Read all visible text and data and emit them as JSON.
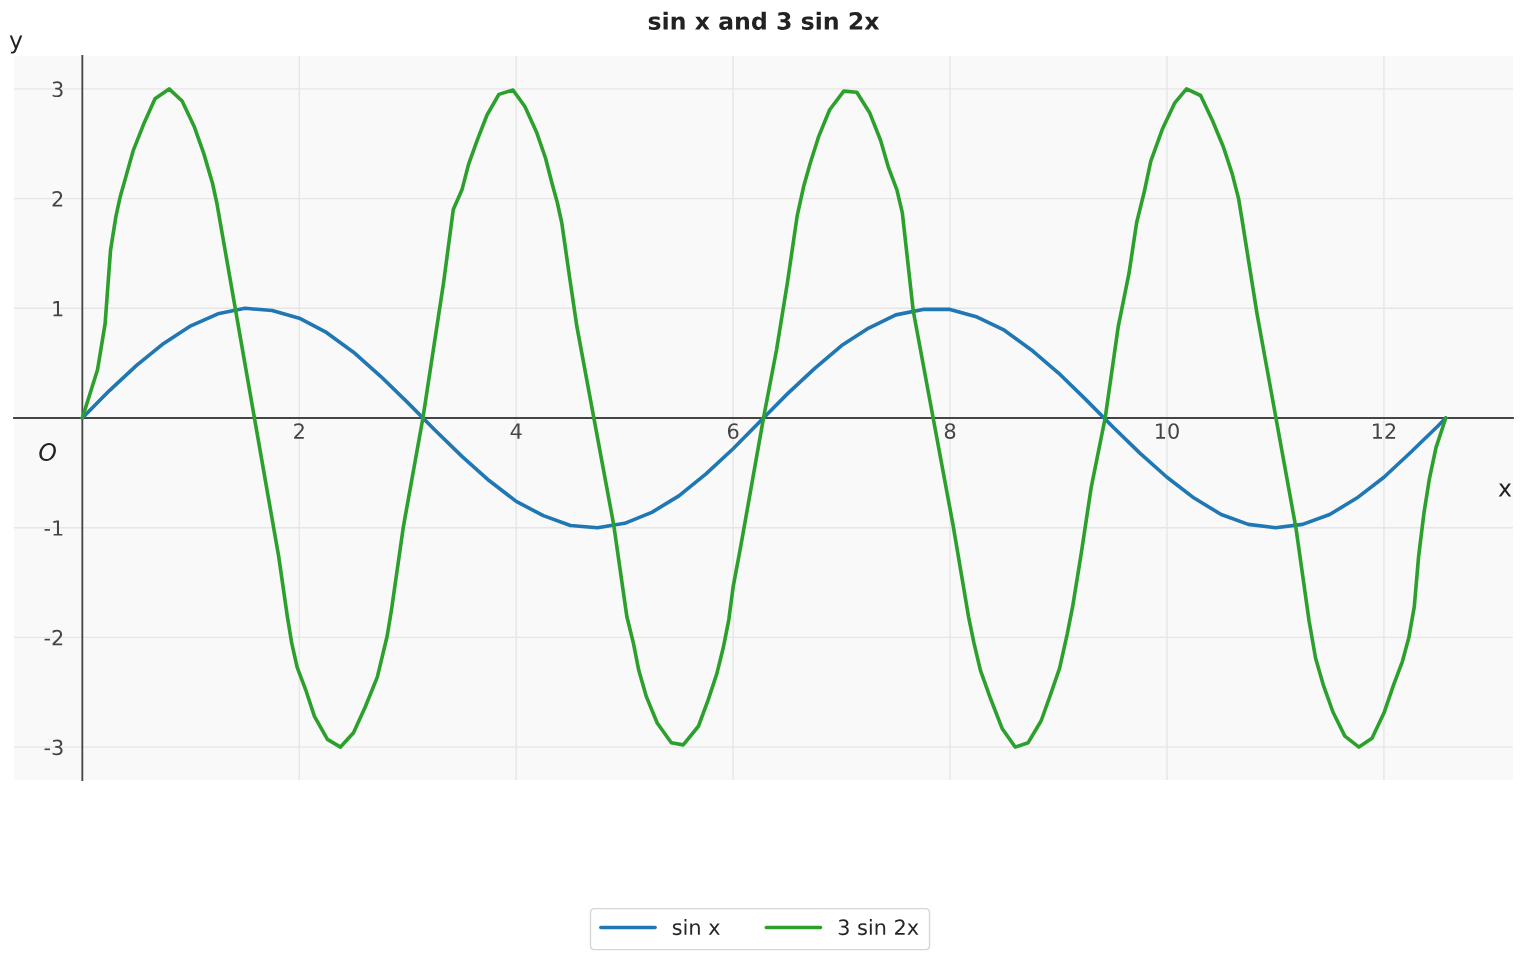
{
  "chart_data": {
    "type": "line",
    "title": "sin x and 3 sin 2x",
    "xlabel": "x",
    "ylabel": "y",
    "annotations": [
      {
        "text": "O",
        "x": 0,
        "y": 0
      }
    ],
    "xlim": [
      -0.63,
      13.19
    ],
    "ylim": [
      -3.3,
      3.3
    ],
    "xticks": [
      2,
      4,
      6,
      8,
      10,
      12
    ],
    "yticks": [
      -3,
      -2,
      -1,
      1,
      2,
      3
    ],
    "grid": true,
    "legend": "bottom",
    "line_style": "solid",
    "series": [
      {
        "name": "sin x",
        "color": "#1f77b4",
        "x": [
          0,
          0.25,
          0.5,
          0.75,
          1.0,
          1.25,
          1.5,
          1.75,
          2.0,
          2.25,
          2.5,
          2.75,
          3.0,
          3.25,
          3.5,
          3.75,
          4.0,
          4.25,
          4.5,
          4.75,
          5.0,
          5.25,
          5.5,
          5.75,
          6.0,
          6.25,
          6.5,
          6.75,
          7.0,
          7.25,
          7.5,
          7.75,
          8.0,
          8.25,
          8.5,
          8.75,
          9.0,
          9.25,
          9.5,
          9.75,
          10.0,
          10.25,
          10.5,
          10.75,
          11.0,
          11.25,
          11.5,
          11.75,
          12.0,
          12.25,
          12.5,
          12.57
        ],
        "values": [
          0,
          0.25,
          0.48,
          0.68,
          0.84,
          0.95,
          1.0,
          0.98,
          0.91,
          0.78,
          0.6,
          0.38,
          0.14,
          -0.11,
          -0.35,
          -0.57,
          -0.76,
          -0.89,
          -0.98,
          -1.0,
          -0.96,
          -0.86,
          -0.71,
          -0.51,
          -0.28,
          -0.03,
          0.22,
          0.45,
          0.66,
          0.82,
          0.94,
          0.99,
          0.99,
          0.92,
          0.8,
          0.62,
          0.41,
          0.17,
          -0.08,
          -0.32,
          -0.54,
          -0.73,
          -0.88,
          -0.97,
          -1.0,
          -0.97,
          -0.88,
          -0.73,
          -0.54,
          -0.31,
          -0.07,
          0.0
        ]
      },
      {
        "name": "3 sin 2x",
        "color": "#2ca02c",
        "x": [
          0,
          0.14,
          0.21,
          0.26,
          0.31,
          0.35,
          0.41,
          0.47,
          0.57,
          0.67,
          0.8,
          0.92,
          1.03,
          1.12,
          1.2,
          1.24,
          1.73,
          1.81,
          1.89,
          1.93,
          1.98,
          2.06,
          2.14,
          2.26,
          2.38,
          2.5,
          2.61,
          2.72,
          2.81,
          2.85,
          2.96,
          3.14,
          3.33,
          3.42,
          3.5,
          3.56,
          3.64,
          3.73,
          3.84,
          3.97,
          4.08,
          4.19,
          4.27,
          4.33,
          4.38,
          4.42,
          4.5,
          4.56,
          4.9,
          5.02,
          5.08,
          5.13,
          5.2,
          5.3,
          5.43,
          5.54,
          5.68,
          5.77,
          5.85,
          5.91,
          5.96,
          6.0,
          6.07,
          6.28,
          6.4,
          6.5,
          6.59,
          6.65,
          6.71,
          6.79,
          6.89,
          7.02,
          7.14,
          7.26,
          7.36,
          7.43,
          7.51,
          7.56,
          7.66,
          8.03,
          8.17,
          8.22,
          8.28,
          8.37,
          8.48,
          8.6,
          8.72,
          8.84,
          8.93,
          9.01,
          9.08,
          9.13,
          9.21,
          9.3,
          9.43,
          9.55,
          9.65,
          9.72,
          9.79,
          9.85,
          9.96,
          10.07,
          10.18,
          10.31,
          10.42,
          10.52,
          10.6,
          10.66,
          10.69,
          10.83,
          11.19,
          11.31,
          11.37,
          11.44,
          11.53,
          11.64,
          11.77,
          11.89,
          12.0,
          12.09,
          12.17,
          12.23,
          12.28,
          12.32,
          12.37,
          12.42,
          12.48,
          12.57
        ],
        "values": [
          0,
          0.44,
          0.86,
          1.53,
          1.84,
          2.02,
          2.23,
          2.44,
          2.69,
          2.91,
          3.0,
          2.89,
          2.66,
          2.41,
          2.14,
          1.96,
          -0.81,
          -1.26,
          -1.81,
          -2.05,
          -2.27,
          -2.48,
          -2.72,
          -2.93,
          -3.0,
          -2.87,
          -2.63,
          -2.36,
          -1.99,
          -1.75,
          -0.99,
          0.0,
          1.23,
          1.9,
          2.08,
          2.31,
          2.53,
          2.76,
          2.95,
          2.99,
          2.84,
          2.6,
          2.37,
          2.14,
          1.96,
          1.78,
          1.23,
          0.83,
          -0.98,
          -1.81,
          -2.05,
          -2.3,
          -2.54,
          -2.78,
          -2.96,
          -2.98,
          -2.81,
          -2.57,
          -2.33,
          -2.09,
          -1.84,
          -1.54,
          -1.17,
          0.0,
          0.62,
          1.23,
          1.84,
          2.11,
          2.32,
          2.57,
          2.81,
          2.98,
          2.97,
          2.78,
          2.53,
          2.29,
          2.08,
          1.87,
          0.98,
          -0.99,
          -1.81,
          -2.05,
          -2.3,
          -2.55,
          -2.83,
          -3.0,
          -2.96,
          -2.76,
          -2.51,
          -2.28,
          -1.97,
          -1.72,
          -1.23,
          -0.64,
          0.0,
          0.83,
          1.32,
          1.78,
          2.06,
          2.34,
          2.64,
          2.87,
          3.0,
          2.94,
          2.71,
          2.47,
          2.23,
          2.0,
          1.82,
          0.95,
          -1.01,
          -1.85,
          -2.19,
          -2.43,
          -2.68,
          -2.9,
          -3.0,
          -2.92,
          -2.69,
          -2.43,
          -2.22,
          -2.0,
          -1.72,
          -1.26,
          -0.86,
          -0.55,
          -0.27,
          0.0
        ]
      }
    ]
  }
}
